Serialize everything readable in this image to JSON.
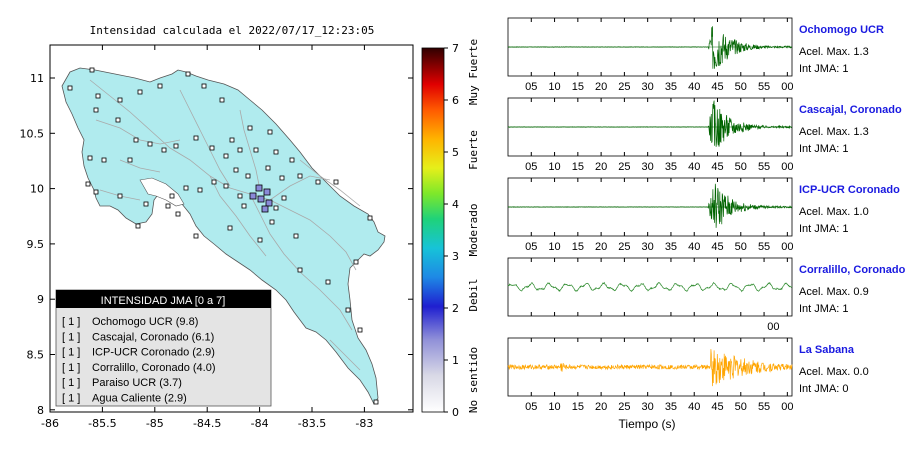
{
  "map": {
    "title": "Intensidad calculada el 2022/07/17_12:23:05",
    "lat_ticks": [
      "11",
      "10.5",
      "10",
      "9.5",
      "9",
      "8.5",
      "8"
    ],
    "lon_ticks": [
      "-86",
      "-85.5",
      "-85",
      "-84.5",
      "-84",
      "-83.5",
      "-83"
    ],
    "land_color": "#b0ebee",
    "legend": {
      "title": "INTENSIDAD JMA [0 a 7]",
      "items": [
        {
          "level": "[ 1 ]",
          "station": "Ochomogo UCR (9.8)"
        },
        {
          "level": "[ 1 ]",
          "station": "Cascajal, Coronado (6.1)"
        },
        {
          "level": "[ 1 ]",
          "station": "ICP-UCR Coronado (2.9)"
        },
        {
          "level": "[ 1 ]",
          "station": "Corralillo, Coronado (4.0)"
        },
        {
          "level": "[ 1 ]",
          "station": "Paraiso UCR (3.7)"
        },
        {
          "level": "[ 1 ]",
          "station": "Agua Caliente (2.9)"
        }
      ]
    }
  },
  "colorbar": {
    "ticks": [
      "0",
      "1",
      "2",
      "3",
      "4",
      "5",
      "6",
      "7"
    ],
    "category_labels": [
      "No sentido",
      "Debil",
      "Moderado",
      "Fuerte",
      "Muy Fuerte"
    ]
  },
  "seismograms": {
    "time_ticks": [
      "05",
      "10",
      "15",
      "20",
      "25",
      "30",
      "35",
      "40",
      "45",
      "50",
      "55",
      "00"
    ],
    "xlabel": "Tiempo (s)",
    "panels": [
      {
        "station": "Ochomogo UCR",
        "accel": "Acel. Max. 1.3",
        "int": "Int JMA: 1",
        "color": "#006400",
        "type": "burst",
        "ticks_visible": true
      },
      {
        "station": "Cascajal, Coronado",
        "accel": "Acel. Max. 1.3",
        "int": "Int JMA: 1",
        "color": "#006400",
        "type": "burst",
        "ticks_visible": true
      },
      {
        "station": "ICP-UCR Coronado",
        "accel": "Acel. Max. 1.0",
        "int": "Int JMA: 1",
        "color": "#006400",
        "type": "burst",
        "ticks_visible": true
      },
      {
        "station": "Corralillo, Coronado",
        "accel": "Acel. Max. 0.9",
        "int": "Int JMA: 1",
        "color": "#2e8b2e",
        "type": "wave",
        "ticks_visible": false,
        "single_tick": "00"
      },
      {
        "station": "La Sabana",
        "accel": "Acel. Max. 0.0",
        "int": "Int JMA: 0",
        "color": "#ffa500",
        "type": "noisy",
        "ticks_visible": true
      }
    ]
  }
}
